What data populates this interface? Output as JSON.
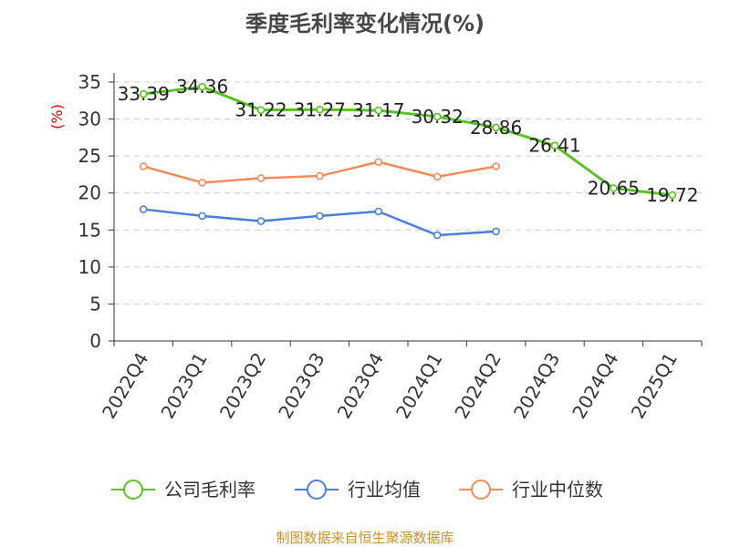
{
  "chart_data": {
    "type": "line",
    "title": "季度毛利率变化情况(%)",
    "ylabel": "(%)",
    "xlabel": "",
    "ylim": [
      0,
      35
    ],
    "yticks": [
      0,
      5,
      10,
      15,
      20,
      25,
      30,
      35
    ],
    "grid": true,
    "legend_position": "bottom",
    "categories": [
      "2022Q4",
      "2023Q1",
      "2023Q2",
      "2023Q3",
      "2023Q4",
      "2024Q1",
      "2024Q2",
      "2024Q3",
      "2024Q4",
      "2025Q1"
    ],
    "series": [
      {
        "name": "公司毛利率",
        "color": "#58c322",
        "values": [
          33.39,
          34.36,
          31.22,
          31.27,
          31.17,
          30.32,
          28.86,
          26.41,
          20.65,
          19.72
        ],
        "labels": [
          "33.39",
          "34.36",
          "31.22",
          "31.27",
          "31.17",
          "30.32",
          "28.86",
          "26.41",
          "20.65",
          "19.72"
        ]
      },
      {
        "name": "行业均值",
        "color": "#4a7fd8",
        "values": [
          17.8,
          16.9,
          16.2,
          16.9,
          17.5,
          14.3,
          14.8,
          null,
          null,
          null
        ]
      },
      {
        "name": "行业中位数",
        "color": "#f28b5a",
        "values": [
          23.6,
          21.4,
          22.0,
          22.3,
          24.2,
          22.2,
          23.6,
          null,
          null,
          null
        ]
      }
    ]
  },
  "source_text": "制图数据来自恒生聚源数据库",
  "colors": {
    "title": "#464646",
    "ylabel": "#d40000",
    "grid": "#cccccc",
    "axis": "#333333",
    "source": "#c6932d"
  }
}
